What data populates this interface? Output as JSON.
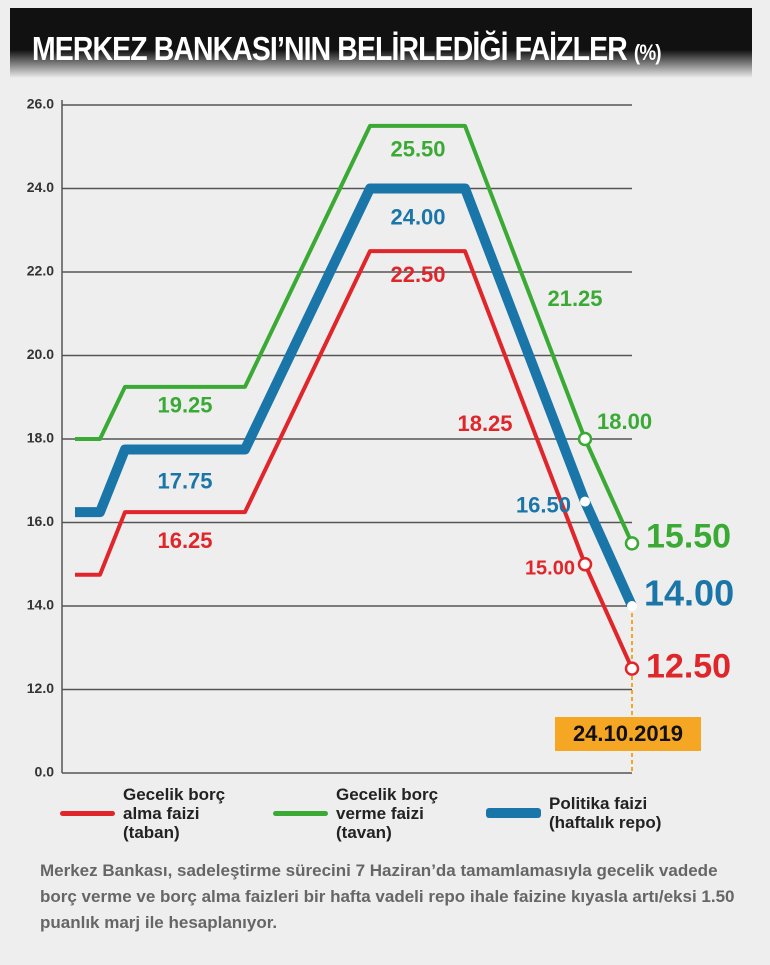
{
  "chart_data": {
    "type": "line",
    "title": "MERKEZ BANKASI’NIN BELİRLEDİĞİ FAİZLER",
    "unit": "(%)",
    "categories": [
      null,
      null,
      null,
      null,
      null,
      null,
      null,
      "24.10.2019"
    ],
    "ylim": [
      0,
      26
    ],
    "axis_break": [
      0,
      10
    ],
    "yticks": [
      {
        "value": 0,
        "label": "0.0"
      },
      {
        "value": 12,
        "label": "12.0"
      },
      {
        "value": 14,
        "label": "14.0"
      },
      {
        "value": 16,
        "label": "16.0"
      },
      {
        "value": 18,
        "label": "18.0"
      },
      {
        "value": 20,
        "label": "20.0"
      },
      {
        "value": 22,
        "label": "22.0"
      },
      {
        "value": 24,
        "label": "24.0"
      },
      {
        "value": 26,
        "label": "26.0"
      }
    ],
    "grid": true,
    "series": [
      {
        "name": "Gecelik borç alma faizi (taban)",
        "color": "#e0262b",
        "values": [
          14.75,
          14.75,
          16.25,
          16.25,
          22.5,
          22.5,
          15.0,
          12.5
        ],
        "value_labels": [
          null,
          null,
          "16.25",
          null,
          "22.50",
          null,
          "15.00",
          "12.50"
        ]
      },
      {
        "name": "Gecelik borç verme faizi (tavan)",
        "color": "#3aaa35",
        "values": [
          18.0,
          18.0,
          19.25,
          19.25,
          25.5,
          25.5,
          18.0,
          15.5
        ],
        "value_labels": [
          null,
          null,
          "19.25",
          null,
          "25.50",
          null,
          "18.00",
          "15.50"
        ]
      },
      {
        "name": "Politika faizi (haftalık repo)",
        "color": "#1a75a8",
        "values": [
          16.25,
          16.25,
          17.75,
          17.75,
          24.0,
          24.0,
          16.5,
          14.0
        ],
        "value_labels": [
          null,
          null,
          "17.75",
          null,
          "24.00",
          null,
          "16.50",
          "14.00"
        ]
      }
    ],
    "annotations": [
      {
        "text": "18.25",
        "color": "#e0262b"
      },
      {
        "text": "21.25",
        "color": "#3aaa35"
      }
    ],
    "highlight_color": "#f5a623",
    "note": "Merkez Bankası, sadeleştirme sürecini 7 Haziran’da tamamlamasıyla gecelik vadede borç verme ve borç alma faizleri bir hafta vadeli repo ihale faizine kıyasla artı/eksi 1.50 puanlık marj ile hesaplanıyor."
  }
}
